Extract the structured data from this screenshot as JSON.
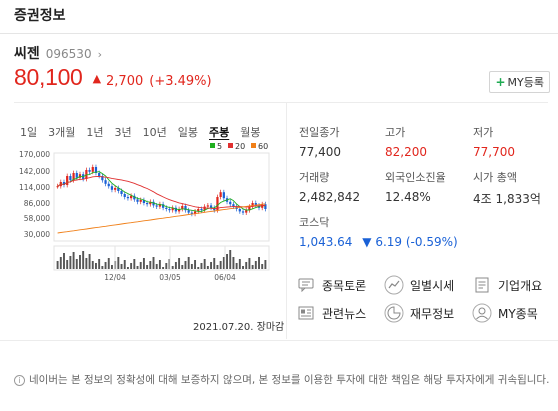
{
  "header": {
    "title": "증권정보"
  },
  "stock": {
    "name": "씨젠",
    "code": "096530",
    "code_arrow": "›",
    "price": "80,100",
    "change_arrow": "▲",
    "change": "2,700",
    "change_pct": "(+3.49%)"
  },
  "my_button": {
    "plus": "+",
    "label": "MY등록"
  },
  "periods": [
    "1일",
    "3개월",
    "1년",
    "3년",
    "10년",
    "일봉",
    "주봉",
    "월봉"
  ],
  "active_period": "주봉",
  "chart": {
    "legend": [
      {
        "label": "5",
        "color": "#20b020"
      },
      {
        "label": "20",
        "color": "#e03030"
      },
      {
        "label": "60",
        "color": "#f07f18"
      }
    ],
    "y_ticks": [
      "170,000",
      "142,000",
      "114,000",
      "86,000",
      "58,000",
      "30,000"
    ],
    "x_ticks": [
      "12/04",
      "03/05",
      "06/04"
    ],
    "date_label": "2021.07.20. 장마감"
  },
  "chart_data": {
    "type": "candlestick",
    "ylim": [
      30000,
      170000
    ],
    "y_ticks": [
      170000,
      142000,
      114000,
      86000,
      58000,
      30000
    ],
    "x_ticks": [
      "12/04",
      "03/05",
      "06/04"
    ],
    "series": [
      {
        "name": "5",
        "color": "#20b020"
      },
      {
        "name": "20",
        "color": "#e03030"
      },
      {
        "name": "60",
        "color": "#f07f18"
      }
    ]
  },
  "info": {
    "prev_close_label": "전일종가",
    "prev_close": "77,400",
    "high_label": "고가",
    "high": "82,200",
    "low_label": "저가",
    "low": "77,700",
    "volume_label": "거래량",
    "volume": "2,482,842",
    "foreign_label": "외국인소진율",
    "foreign": "12.48%",
    "cap_label": "시가 총액",
    "cap": "4조 1,833억"
  },
  "kospi": {
    "label": "코스닥",
    "value": "1,043.64",
    "arrow": "▼",
    "change": "6.19",
    "pct": "(-0.59%)"
  },
  "links": {
    "forum": "종목토론",
    "daily": "일별시세",
    "company": "기업개요",
    "news": "관련뉴스",
    "finance": "재무정보",
    "my": "MY종목"
  },
  "notice": {
    "icon": "i",
    "text": "네이버는 본 정보의 정확성에 대해 보증하지 않으며, 본 정보를 이용한 투자에 대한 책임은 해당 투자자에게 귀속됩니다."
  }
}
